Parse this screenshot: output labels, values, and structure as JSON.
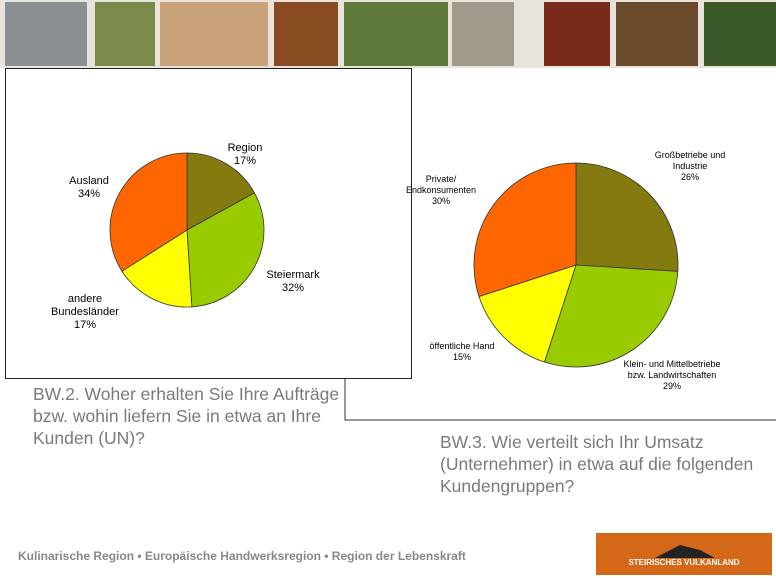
{
  "chart_data": [
    {
      "type": "pie",
      "title": "BW.2. Woher erhalten Sie Ihre Aufträge bzw. wohin liefern Sie in etwa an Ihre Kunden (UN)?",
      "categories": [
        "Region",
        "Steiermark",
        "andere Bundesländer",
        "Ausland"
      ],
      "values": [
        17,
        32,
        17,
        34
      ],
      "value_labels": [
        "17%",
        "32%",
        "17%",
        "34%"
      ],
      "colors": [
        "#857a10",
        "#99cc00",
        "#ffff00",
        "#ff6600"
      ]
    },
    {
      "type": "pie",
      "title": "BW.3. Wie verteilt sich Ihr Umsatz (Unternehmer)  in etwa auf die folgenden Kundengruppen?",
      "categories": [
        "Großbetriebe und Industrie",
        "Klein- und Mittelbetriebe bzw. Landwirtschaften",
        "öffentliche Hand",
        "Private/ Endkonsumenten"
      ],
      "values": [
        26,
        29,
        15,
        30
      ],
      "value_labels": [
        "26%",
        "29%",
        "15%",
        "30%"
      ],
      "colors": [
        "#857a10",
        "#99cc00",
        "#ffff00",
        "#ff6600"
      ]
    }
  ],
  "footer": "Kulinarische Region • Europäische Handwerksregion • Region der Lebenskraft",
  "logo": "STEIRISCHES VULKANLAND"
}
